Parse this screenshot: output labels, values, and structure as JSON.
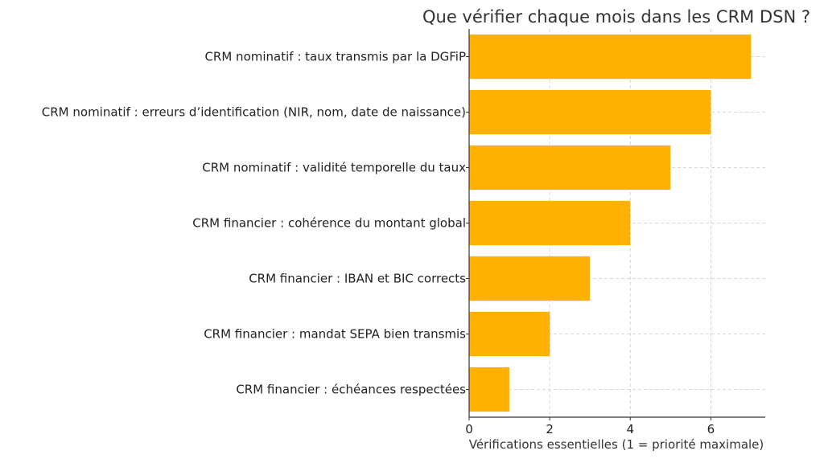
{
  "chart_data": {
    "type": "bar",
    "orientation": "horizontal",
    "title": "Que vérifier chaque mois dans les CRM DSN ?",
    "xlabel": "Vérifications essentielles (1 = priorité maximale)",
    "ylabel": "",
    "xlim": [
      0,
      7.35
    ],
    "xticks": [
      0,
      2,
      4,
      6
    ],
    "grid": true,
    "legend": "none",
    "bar_color": "#FFB000",
    "categories": [
      "CRM nominatif : taux transmis par la DGFiP",
      "CRM nominatif : erreurs d’identification (NIR, nom, date de naissance)",
      "CRM nominatif : validité temporelle du taux",
      "CRM financier : cohérence du montant global",
      "CRM financier : IBAN et BIC corrects",
      "CRM financier : mandat SEPA bien transmis",
      "CRM financier : échéances respectées"
    ],
    "values": [
      7,
      6,
      5,
      4,
      3,
      2,
      1
    ]
  }
}
